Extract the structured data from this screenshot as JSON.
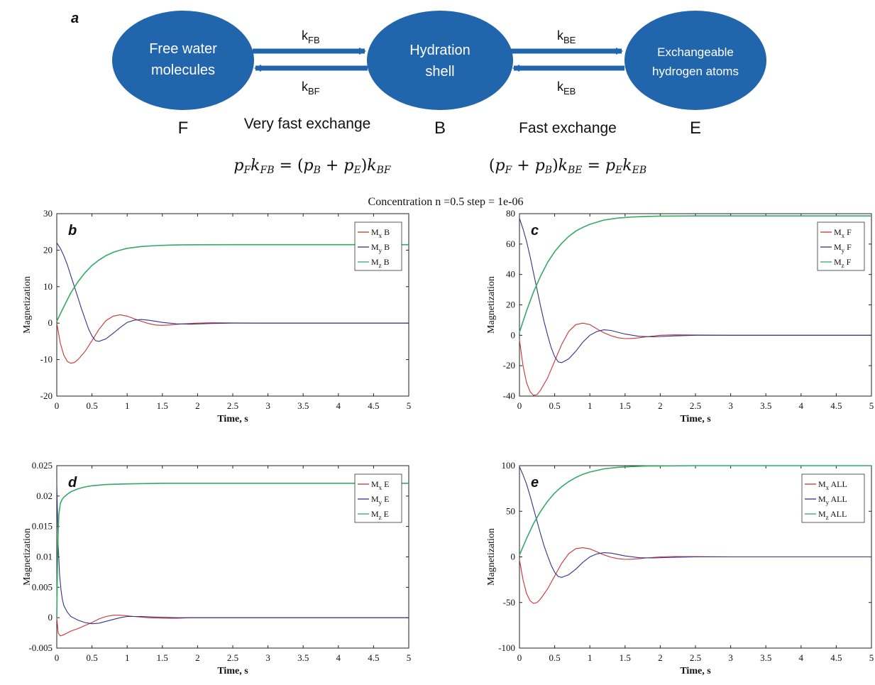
{
  "diagram": {
    "panel_letter": "a",
    "nodes": [
      {
        "id": "F",
        "line1": "Free water",
        "line2": "molecules",
        "letter": "F",
        "color": "#2166ad"
      },
      {
        "id": "B",
        "line1": "Hydration",
        "line2": "shell",
        "letter": "B",
        "color": "#2166ad"
      },
      {
        "id": "E",
        "line1": "Exchangeable",
        "line2": "hydrogen atoms",
        "letter": "E",
        "color": "#2166ad"
      }
    ],
    "rates": {
      "kFB": {
        "k": "k",
        "sub": "FB"
      },
      "kBF": {
        "k": "k",
        "sub": "BF"
      },
      "kBE": {
        "k": "k",
        "sub": "BE"
      },
      "kEB": {
        "k": "k",
        "sub": "EB"
      }
    },
    "exchange_left": "Very fast exchange",
    "exchange_right": "Fast exchange",
    "equation_left": "pFkFB = (pB + pE)kBF",
    "equation_right": "(pF + pB)kBE = pEkEB"
  },
  "suptitle": "Concentration n =0.5 step = 1e-06",
  "colors": {
    "mx": "#cc3333",
    "my": "#333388",
    "mz": "#33aa66"
  },
  "chart_data": [
    {
      "panel": "b",
      "type": "line",
      "xlabel": "Time, s",
      "ylabel": "Magnetization",
      "xlim": [
        0,
        5
      ],
      "ylim": [
        -20,
        30
      ],
      "xticks": [
        "0",
        "0.5",
        "1",
        "1.5",
        "2",
        "2.5",
        "3",
        "3.5",
        "4",
        "4.5",
        "5"
      ],
      "yticks": [
        "-20",
        "-10",
        "0",
        "10",
        "20",
        "30"
      ],
      "legend": "top-right",
      "series": [
        {
          "name": "Mx B",
          "base": "M",
          "sub": "x",
          "suffix": "B",
          "key": "mx",
          "x": [
            0,
            0.05,
            0.1,
            0.15,
            0.2,
            0.25,
            0.3,
            0.4,
            0.5,
            0.6,
            0.7,
            0.8,
            0.9,
            1.0,
            1.1,
            1.2,
            1.3,
            1.4,
            1.5,
            1.6,
            1.7,
            1.8,
            2.0,
            2.2,
            2.5,
            3,
            4,
            5
          ],
          "y": [
            0,
            -5.5,
            -8.8,
            -10.5,
            -11,
            -10.8,
            -10,
            -7.8,
            -4.8,
            -1.7,
            0.7,
            1.9,
            2.3,
            1.9,
            1.2,
            0.5,
            -0.1,
            -0.5,
            -0.6,
            -0.5,
            -0.35,
            -0.2,
            0,
            0.1,
            0.05,
            0,
            0,
            0
          ]
        },
        {
          "name": "My B",
          "base": "M",
          "sub": "y",
          "suffix": "B",
          "key": "my",
          "x": [
            0,
            0.05,
            0.1,
            0.15,
            0.2,
            0.25,
            0.3,
            0.35,
            0.4,
            0.45,
            0.5,
            0.55,
            0.6,
            0.7,
            0.8,
            0.9,
            1.0,
            1.1,
            1.2,
            1.3,
            1.4,
            1.5,
            1.7,
            1.9,
            2.2,
            2.5,
            3,
            4,
            5
          ],
          "y": [
            22,
            20.5,
            18.5,
            16,
            13,
            10,
            7,
            4,
            1.2,
            -1.5,
            -3.5,
            -4.8,
            -5,
            -4.3,
            -2.8,
            -1.2,
            0.2,
            0.8,
            1,
            0.8,
            0.5,
            0.2,
            -0.2,
            -0.3,
            -0.1,
            0,
            0,
            0,
            0
          ]
        },
        {
          "name": "Mz B",
          "base": "M",
          "sub": "z",
          "suffix": "B",
          "key": "mz",
          "x": [
            0,
            0.1,
            0.2,
            0.3,
            0.4,
            0.5,
            0.6,
            0.7,
            0.8,
            0.9,
            1.0,
            1.2,
            1.4,
            1.6,
            1.8,
            2.0,
            2.5,
            3,
            3.5,
            4,
            4.5,
            5
          ],
          "y": [
            0.5,
            4.5,
            8.3,
            11.3,
            13.8,
            15.8,
            17.3,
            18.5,
            19.4,
            20.0,
            20.5,
            21.0,
            21.25,
            21.38,
            21.45,
            21.48,
            21.5,
            21.5,
            21.5,
            21.5,
            21.5,
            21.5
          ]
        }
      ]
    },
    {
      "panel": "c",
      "type": "line",
      "xlabel": "Time, s",
      "ylabel": "Magnetization",
      "xlim": [
        0,
        5
      ],
      "ylim": [
        -40,
        80
      ],
      "xticks": [
        "0",
        "0.5",
        "1",
        "1.5",
        "2",
        "2.5",
        "3",
        "3.5",
        "4",
        "4.5",
        "5"
      ],
      "yticks": [
        "-40",
        "-20",
        "0",
        "20",
        "40",
        "60",
        "80"
      ],
      "legend": "top-right",
      "series": [
        {
          "name": "Mx F",
          "base": "M",
          "sub": "x",
          "suffix": "F",
          "key": "mx",
          "x": [
            0,
            0.05,
            0.1,
            0.15,
            0.2,
            0.25,
            0.3,
            0.4,
            0.5,
            0.6,
            0.7,
            0.8,
            0.9,
            1.0,
            1.1,
            1.2,
            1.3,
            1.4,
            1.5,
            1.6,
            1.7,
            1.8,
            2.0,
            2.2,
            2.5,
            3,
            4,
            5
          ],
          "y": [
            -3,
            -20,
            -31,
            -37,
            -39.5,
            -39,
            -36,
            -28,
            -17,
            -6,
            2.5,
            7,
            8,
            7,
            4.2,
            1.7,
            -0.3,
            -1.6,
            -2.2,
            -2.1,
            -1.6,
            -1,
            0,
            0.3,
            0.2,
            0,
            0,
            0
          ]
        },
        {
          "name": "My F",
          "base": "M",
          "sub": "y",
          "suffix": "F",
          "key": "my",
          "x": [
            0,
            0.05,
            0.1,
            0.15,
            0.2,
            0.25,
            0.3,
            0.35,
            0.4,
            0.45,
            0.5,
            0.55,
            0.6,
            0.7,
            0.8,
            0.9,
            1.0,
            1.1,
            1.2,
            1.3,
            1.4,
            1.5,
            1.7,
            1.9,
            2.2,
            2.5,
            3,
            4,
            5
          ],
          "y": [
            77,
            70,
            62,
            52,
            41,
            30,
            19,
            9,
            0,
            -8,
            -14,
            -17.5,
            -18,
            -15.5,
            -10.5,
            -4.5,
            0,
            2.5,
            3.6,
            3.2,
            2,
            0.8,
            -0.7,
            -1,
            -0.4,
            0,
            0,
            0,
            0
          ]
        },
        {
          "name": "Mz F",
          "base": "M",
          "sub": "z",
          "suffix": "F",
          "key": "mz",
          "x": [
            0,
            0.1,
            0.2,
            0.3,
            0.4,
            0.5,
            0.6,
            0.7,
            0.8,
            0.9,
            1.0,
            1.2,
            1.4,
            1.6,
            1.8,
            2.0,
            2.5,
            3,
            3.5,
            4,
            4.5,
            5
          ],
          "y": [
            2,
            16,
            28.5,
            39,
            48,
            55,
            60.5,
            65,
            68.5,
            71,
            73,
            75.8,
            77.1,
            77.8,
            78.2,
            78.4,
            78.5,
            78.5,
            78.5,
            78.5,
            78.5,
            78.5
          ]
        }
      ]
    },
    {
      "panel": "d",
      "type": "line",
      "xlabel": "Time, s",
      "ylabel": "Magnetization",
      "xlim": [
        0,
        5
      ],
      "ylim": [
        -0.005,
        0.025
      ],
      "xticks": [
        "0",
        "0.5",
        "1",
        "1.5",
        "2",
        "2.5",
        "3",
        "3.5",
        "4",
        "4.5",
        "5"
      ],
      "yticks": [
        "-0.005",
        "0",
        "0.005",
        "0.01",
        "0.015",
        "0.02",
        "0.025"
      ],
      "legend": "top-right",
      "series": [
        {
          "name": "Mx E",
          "base": "M",
          "sub": "x",
          "suffix": "E",
          "key": "mx",
          "x": [
            0,
            0.02,
            0.05,
            0.1,
            0.2,
            0.3,
            0.4,
            0.5,
            0.6,
            0.7,
            0.8,
            0.9,
            1.0,
            1.1,
            1.2,
            1.3,
            1.5,
            1.7,
            1.9,
            2.2,
            2.5,
            3,
            4,
            5
          ],
          "y": [
            0,
            -0.0025,
            -0.003,
            -0.0028,
            -0.0022,
            -0.0018,
            -0.0013,
            -0.0008,
            -0.0002,
            0.0002,
            0.0004,
            0.0004,
            0.0003,
            0.0002,
            0.0001,
            0,
            -0.0001,
            -0.0001,
            0,
            0,
            0,
            0,
            0,
            0
          ]
        },
        {
          "name": "My E",
          "base": "M",
          "sub": "y",
          "suffix": "E",
          "key": "my",
          "x": [
            0,
            0.01,
            0.02,
            0.04,
            0.06,
            0.08,
            0.1,
            0.15,
            0.2,
            0.3,
            0.4,
            0.5,
            0.6,
            0.7,
            0.8,
            0.9,
            1.0,
            1.2,
            1.4,
            1.7,
            2.0,
            2.5,
            3,
            4,
            5
          ],
          "y": [
            0.022,
            0.017,
            0.012,
            0.007,
            0.0045,
            0.003,
            0.002,
            0.0009,
            0.0002,
            -0.0004,
            -0.0008,
            -0.001,
            -0.0009,
            -0.0006,
            -0.0003,
            0,
            0.0002,
            0.0002,
            0.0001,
            0,
            0,
            0,
            0,
            0,
            0
          ]
        },
        {
          "name": "Mz E",
          "base": "M",
          "sub": "z",
          "suffix": "E",
          "key": "mz",
          "x": [
            0,
            0.01,
            0.02,
            0.03,
            0.05,
            0.08,
            0.1,
            0.15,
            0.2,
            0.3,
            0.4,
            0.5,
            0.7,
            1.0,
            1.5,
            2.0,
            2.5,
            3,
            3.5,
            4,
            4.5,
            5
          ],
          "y": [
            0,
            0.009,
            0.0145,
            0.017,
            0.0188,
            0.0195,
            0.0198,
            0.0203,
            0.0207,
            0.0212,
            0.0215,
            0.0217,
            0.0219,
            0.022,
            0.0221,
            0.0221,
            0.0221,
            0.0221,
            0.0221,
            0.0221,
            0.0221,
            0.0221
          ]
        }
      ]
    },
    {
      "panel": "e",
      "type": "line",
      "xlabel": "Time, s",
      "ylabel": "Magnetization",
      "xlim": [
        0,
        5
      ],
      "ylim": [
        -100,
        100
      ],
      "xticks": [
        "0",
        "0.5",
        "1",
        "1.5",
        "2",
        "2.5",
        "3",
        "3.5",
        "4",
        "4.5",
        "5"
      ],
      "yticks": [
        "-100",
        "-50",
        "0",
        "50",
        "100"
      ],
      "legend": "top-right",
      "series": [
        {
          "name": "Mx ALL",
          "base": "M",
          "sub": "x",
          "suffix": "ALL",
          "key": "mx",
          "x": [
            0,
            0.05,
            0.1,
            0.15,
            0.2,
            0.25,
            0.3,
            0.4,
            0.5,
            0.6,
            0.7,
            0.8,
            0.9,
            1.0,
            1.1,
            1.2,
            1.3,
            1.4,
            1.5,
            1.6,
            1.7,
            1.8,
            2.0,
            2.2,
            2.5,
            3,
            4,
            5
          ],
          "y": [
            -3,
            -25,
            -40,
            -48,
            -51,
            -50,
            -46,
            -35,
            -21,
            -7,
            3.5,
            9,
            10,
            8.8,
            5.5,
            2.2,
            -0.4,
            -2,
            -2.7,
            -2.6,
            -2,
            -1.2,
            0,
            0.4,
            0.2,
            0,
            0,
            0
          ]
        },
        {
          "name": "My ALL",
          "base": "M",
          "sub": "y",
          "suffix": "ALL",
          "key": "my",
          "x": [
            0,
            0.05,
            0.1,
            0.15,
            0.2,
            0.25,
            0.3,
            0.35,
            0.4,
            0.45,
            0.5,
            0.55,
            0.6,
            0.7,
            0.8,
            0.9,
            1.0,
            1.1,
            1.2,
            1.3,
            1.4,
            1.5,
            1.7,
            1.9,
            2.2,
            2.5,
            3,
            4,
            5
          ],
          "y": [
            99,
            90,
            80,
            67,
            53,
            39,
            25,
            12,
            1,
            -9,
            -17,
            -21.5,
            -22.5,
            -19.5,
            -13.5,
            -6,
            0,
            3.3,
            4.6,
            4.1,
            2.6,
            1,
            -0.9,
            -1.2,
            -0.5,
            0,
            0,
            0,
            0
          ]
        },
        {
          "name": "Mz ALL",
          "base": "M",
          "sub": "z",
          "suffix": "ALL",
          "key": "mz",
          "x": [
            0,
            0.1,
            0.2,
            0.3,
            0.4,
            0.5,
            0.6,
            0.7,
            0.8,
            0.9,
            1.0,
            1.2,
            1.4,
            1.6,
            1.8,
            2.0,
            2.5,
            3,
            3.5,
            4,
            4.5,
            5
          ],
          "y": [
            2,
            20,
            36.5,
            50,
            61,
            70,
            77,
            82.5,
            87,
            90.5,
            93,
            96.5,
            98.2,
            99,
            99.5,
            99.7,
            100,
            100,
            100,
            100,
            100,
            100
          ]
        }
      ]
    }
  ]
}
